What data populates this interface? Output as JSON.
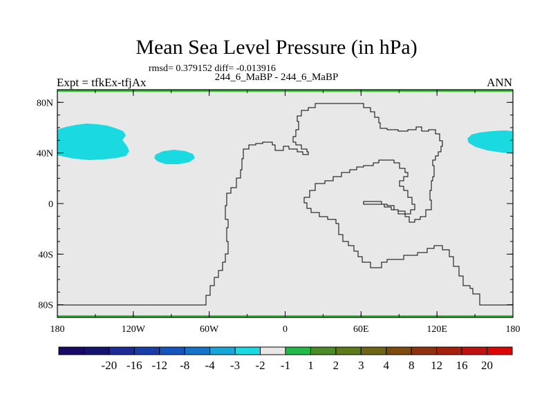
{
  "header": {
    "title": "Mean Sea Level Pressure (in hPa)",
    "stats": "rmsd= 0.379152 diff= -0.013916",
    "subtitle": "244_6_MaBP - 244_6_MaBP",
    "left_label": "Expt = tfkEx-tfjAx",
    "right_label": "ANN"
  },
  "map": {
    "lat_ticks": [
      {
        "label": "80N",
        "value": 80
      },
      {
        "label": "40N",
        "value": 40
      },
      {
        "label": "0",
        "value": 0
      },
      {
        "label": "40S",
        "value": -40
      },
      {
        "label": "80S",
        "value": -80
      }
    ],
    "lon_ticks": [
      {
        "label": "180",
        "value": -180
      },
      {
        "label": "120W",
        "value": -120
      },
      {
        "label": "60W",
        "value": -60
      },
      {
        "label": "0",
        "value": 0
      },
      {
        "label": "60E",
        "value": 60
      },
      {
        "label": "120E",
        "value": 120
      },
      {
        "label": "180",
        "value": 180
      }
    ],
    "lon_range": [
      -180,
      180
    ],
    "lat_range": [
      -90,
      90
    ],
    "background_color": "#e8e8e8",
    "low_anomaly_color": "#1ad9e0",
    "polar_band_color": "#33bb33"
  },
  "colorbar": {
    "colors": [
      "#1a0a66",
      "#14146e",
      "#1e2a96",
      "#1a3ea8",
      "#1555bc",
      "#1574c8",
      "#18a6d8",
      "#1ad9e0",
      "#e8e8e8",
      "#22b84a",
      "#4d8a28",
      "#5e7a1a",
      "#6e6614",
      "#7d4a10",
      "#8e3210",
      "#a6200e",
      "#c01010",
      "#dc0606"
    ],
    "labels": [
      "-20",
      "-16",
      "-12",
      "-8",
      "-4",
      "-3",
      "-2",
      "-1",
      "1",
      "2",
      "3",
      "4",
      "8",
      "12",
      "16",
      "20"
    ]
  }
}
